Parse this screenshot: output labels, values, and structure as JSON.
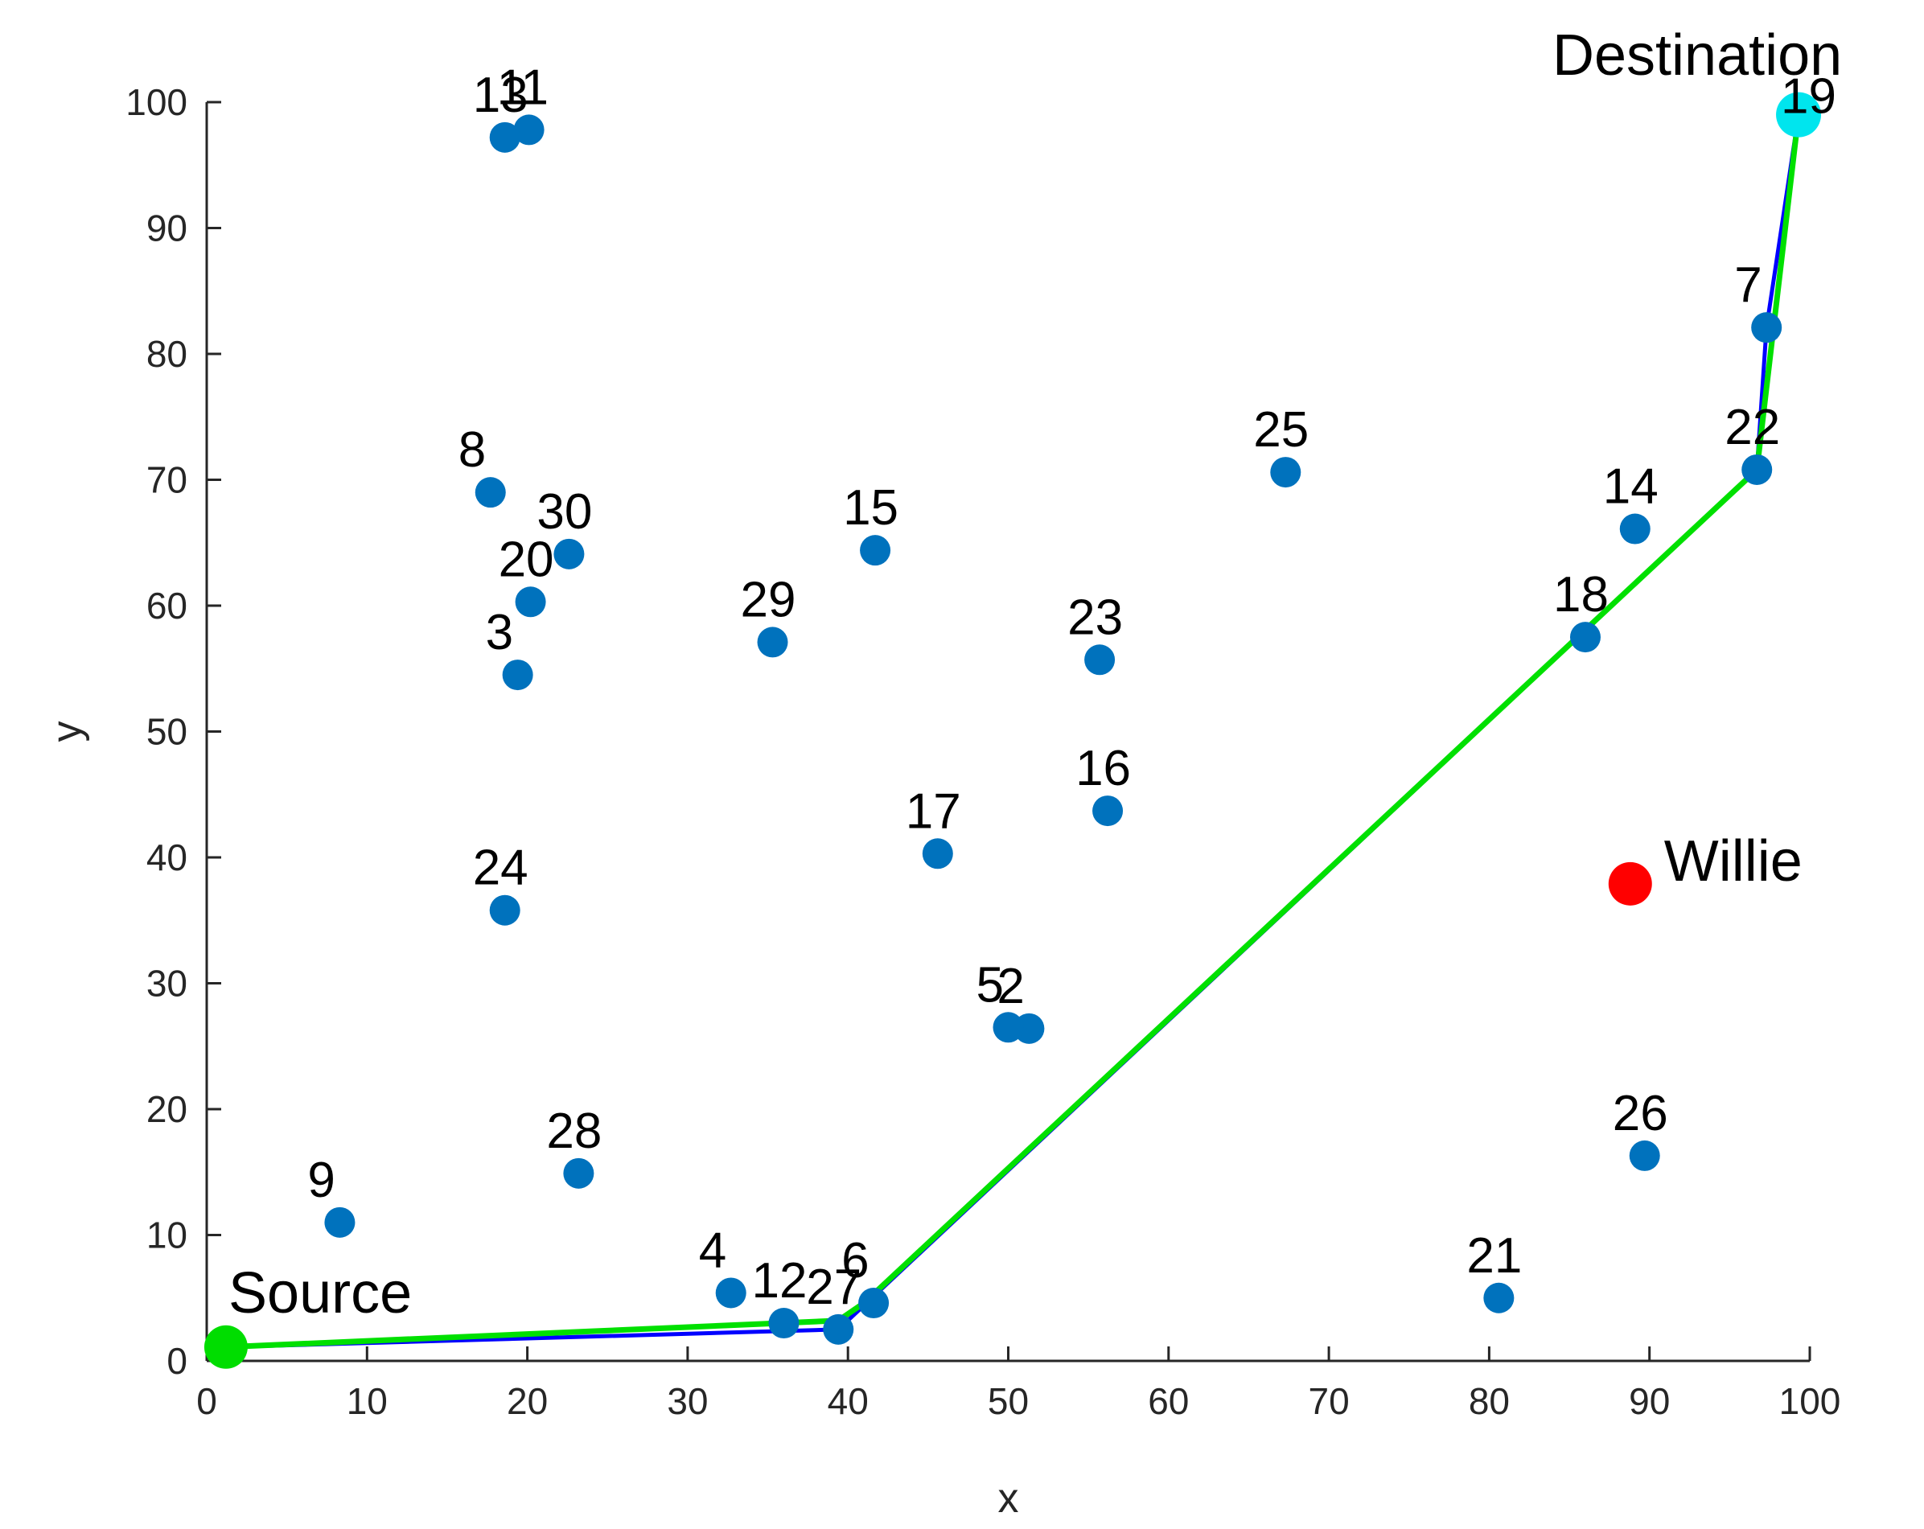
{
  "chart_data": {
    "type": "scatter",
    "xlabel": "x",
    "ylabel": "y",
    "xlim": [
      0,
      100
    ],
    "ylim": [
      0,
      100
    ],
    "xticks": [
      0,
      10,
      20,
      30,
      40,
      50,
      60,
      70,
      80,
      90,
      100
    ],
    "yticks": [
      0,
      10,
      20,
      30,
      40,
      50,
      60,
      70,
      80,
      90,
      100
    ],
    "grid": false,
    "node_color": "#0072BD",
    "nodes": [
      {
        "id": "2",
        "x": 51.3,
        "y": 26.4
      },
      {
        "id": "3",
        "x": 19.4,
        "y": 54.5
      },
      {
        "id": "4",
        "x": 32.7,
        "y": 5.4
      },
      {
        "id": "5",
        "x": 50.0,
        "y": 26.5
      },
      {
        "id": "6",
        "x": 41.6,
        "y": 4.6
      },
      {
        "id": "7",
        "x": 97.3,
        "y": 82.1
      },
      {
        "id": "8",
        "x": 17.7,
        "y": 69.0
      },
      {
        "id": "9",
        "x": 8.3,
        "y": 11.0
      },
      {
        "id": "11",
        "x": 20.1,
        "y": 97.8
      },
      {
        "id": "12",
        "x": 36.0,
        "y": 3.0
      },
      {
        "id": "13",
        "x": 18.6,
        "y": 97.2
      },
      {
        "id": "14",
        "x": 89.1,
        "y": 66.1
      },
      {
        "id": "15",
        "x": 41.7,
        "y": 64.4
      },
      {
        "id": "16",
        "x": 56.2,
        "y": 43.7
      },
      {
        "id": "17",
        "x": 45.6,
        "y": 40.3
      },
      {
        "id": "18",
        "x": 86.0,
        "y": 57.5
      },
      {
        "id": "20",
        "x": 20.2,
        "y": 60.3
      },
      {
        "id": "21",
        "x": 80.6,
        "y": 5.0
      },
      {
        "id": "22",
        "x": 96.7,
        "y": 70.8
      },
      {
        "id": "23",
        "x": 55.7,
        "y": 55.7
      },
      {
        "id": "24",
        "x": 18.6,
        "y": 35.8
      },
      {
        "id": "25",
        "x": 67.3,
        "y": 70.6
      },
      {
        "id": "26",
        "x": 89.7,
        "y": 16.3
      },
      {
        "id": "27",
        "x": 39.4,
        "y": 2.5
      },
      {
        "id": "28",
        "x": 23.2,
        "y": 14.9
      },
      {
        "id": "29",
        "x": 35.3,
        "y": 57.1
      },
      {
        "id": "30",
        "x": 22.6,
        "y": 64.1
      }
    ],
    "source": {
      "label": "Source",
      "x": 1.2,
      "y": 1.1,
      "color": "#00DD00"
    },
    "destination": {
      "label": "Destination",
      "id": "19",
      "x": 99.3,
      "y": 99.0,
      "color": "#00E5EE"
    },
    "willie": {
      "label": "Willie",
      "x": 88.8,
      "y": 37.9,
      "color": "#FF0000"
    },
    "paths": [
      {
        "color": "#0000FF",
        "points": [
          [
            1.2,
            1.1
          ],
          [
            39.4,
            2.5
          ],
          [
            39.4,
            2.5
          ],
          [
            96.7,
            70.8
          ],
          [
            97.3,
            82.1
          ],
          [
            99.3,
            99.0
          ]
        ]
      },
      {
        "color": "#00E000",
        "points": [
          [
            1.2,
            1.1
          ],
          [
            39.4,
            3.2
          ],
          [
            41.0,
            4.6
          ],
          [
            96.7,
            70.8
          ],
          [
            99.3,
            99.0
          ]
        ]
      }
    ]
  }
}
